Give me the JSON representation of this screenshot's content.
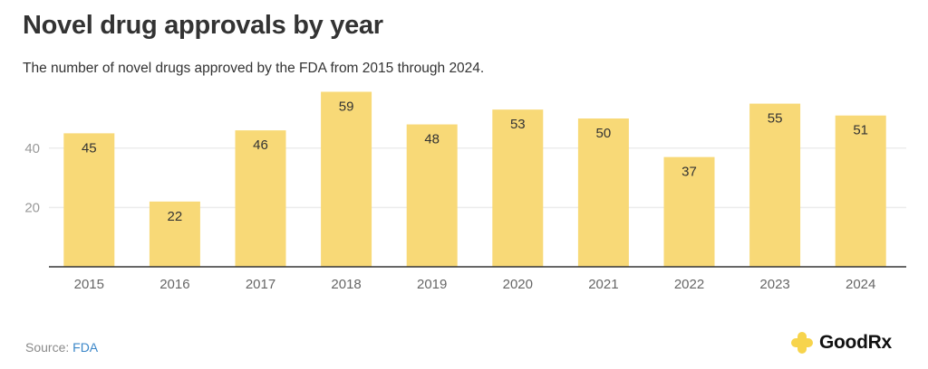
{
  "header": {
    "title": "Novel drug approvals by year",
    "subtitle": "The number of novel drugs approved by the FDA from 2015 through 2024."
  },
  "footer": {
    "source_label": "Source:",
    "source_link": "FDA",
    "brand": "GoodRx",
    "brand_icon": "plus-cross-icon"
  },
  "colors": {
    "bar": "#f8d977",
    "grid": "#ececec",
    "axis": "#333333",
    "tick_text": "#999999",
    "label_text": "#333333",
    "link": "#3a86c8",
    "brand_icon": "#f7d44c"
  },
  "chart_data": {
    "type": "bar",
    "title": "Novel drug approvals by year",
    "subtitle": "The number of novel drugs approved by the FDA from 2015 through 2024.",
    "xlabel": "",
    "ylabel": "",
    "categories": [
      "2015",
      "2016",
      "2017",
      "2018",
      "2019",
      "2020",
      "2021",
      "2022",
      "2023",
      "2024"
    ],
    "values": [
      45,
      22,
      46,
      59,
      48,
      53,
      50,
      37,
      55,
      51
    ],
    "data_labels": [
      "45",
      "22",
      "46",
      "59",
      "48",
      "53",
      "50",
      "37",
      "55",
      "51"
    ],
    "yticks": [
      20,
      40
    ],
    "ytick_labels": [
      "20",
      "40"
    ],
    "ylim": [
      0,
      60
    ],
    "grid": true,
    "legend": "none"
  }
}
